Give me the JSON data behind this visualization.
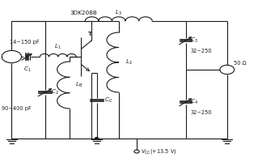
{
  "bg_color": "#ffffff",
  "line_color": "#1a1a1a",
  "lw": 0.8,
  "fig_w": 3.19,
  "fig_h": 2.0,
  "dpi": 100,
  "labels": {
    "C1": "$C_1$",
    "C2": "$C_2$",
    "C3": "$C_3$",
    "C4": "$C_4$",
    "CC": "$C_C$",
    "L1": "$L_1$",
    "L2": "$L_2$",
    "L3": "$L_3$",
    "LB": "$L_\\mathrm{B}$",
    "T_label": "T",
    "transistor": "3DK208B",
    "vcc": "$V_\\mathrm{CC}$(+13.5 V)",
    "c1_val": "14~150 pF",
    "c2_val": "90~400 pF",
    "c3_val": "32~250",
    "c4_val": "32~250",
    "ohm": "50 Ω"
  }
}
